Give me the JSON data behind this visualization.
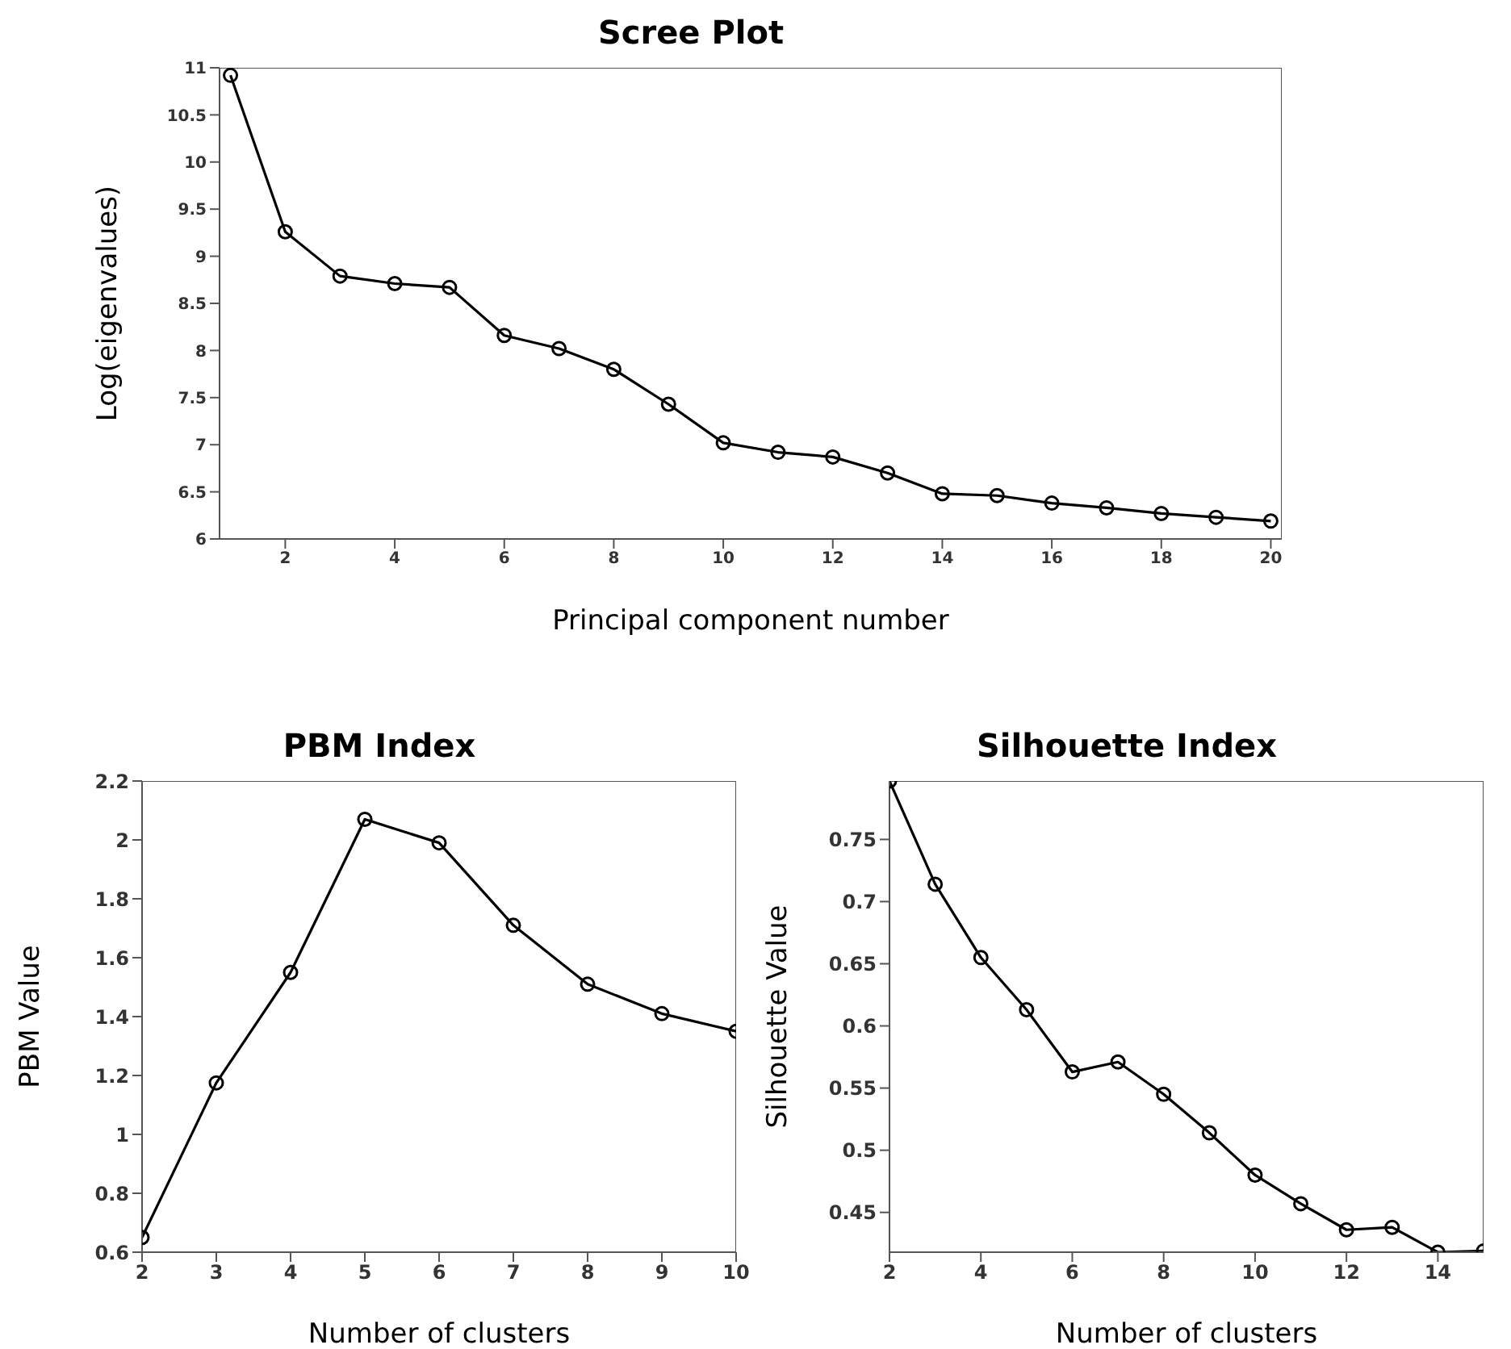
{
  "chart_data": [
    {
      "type": "line",
      "title": "Scree Plot",
      "xlabel": "Principal component number",
      "ylabel": "Log(eigenvalues)",
      "x": [
        1,
        2,
        3,
        4,
        5,
        6,
        7,
        8,
        9,
        10,
        11,
        12,
        13,
        14,
        15,
        16,
        17,
        18,
        19,
        20
      ],
      "series": [
        {
          "color": "#000000",
          "values": [
            10.92,
            9.26,
            8.79,
            8.71,
            8.67,
            8.16,
            8.02,
            7.8,
            7.43,
            7.02,
            6.92,
            6.87,
            6.7,
            6.48,
            6.46,
            6.38,
            6.33,
            6.27,
            6.23,
            6.19
          ]
        }
      ],
      "xlim": [
        0.8,
        20.2
      ],
      "xticks": [
        2,
        4,
        6,
        8,
        10,
        12,
        14,
        16,
        18,
        20
      ],
      "ylim": [
        6,
        11
      ],
      "yticks": [
        6,
        6.5,
        7,
        7.5,
        8,
        8.5,
        9,
        9.5,
        10,
        10.5,
        11
      ],
      "grid": false,
      "marker": "circle",
      "line_style": "solid"
    },
    {
      "type": "line",
      "title": "PBM Index",
      "xlabel": "Number of clusters",
      "ylabel": "PBM Value",
      "x": [
        2,
        3,
        4,
        5,
        6,
        7,
        8,
        9,
        10
      ],
      "series": [
        {
          "color": "#000000",
          "values": [
            0.65,
            1.175,
            1.55,
            2.07,
            1.99,
            1.71,
            1.51,
            1.41,
            1.35
          ]
        }
      ],
      "xlim": [
        2,
        10
      ],
      "xticks": [
        2,
        3,
        4,
        5,
        6,
        7,
        8,
        9,
        10
      ],
      "ylim": [
        0.6,
        2.2
      ],
      "yticks": [
        0.6,
        0.8,
        1,
        1.2,
        1.4,
        1.6,
        1.8,
        2,
        2.2
      ],
      "grid": false,
      "marker": "circle",
      "line_style": "solid"
    },
    {
      "type": "line",
      "title": "Silhouette Index",
      "xlabel": "Number of clusters",
      "ylabel": "Silhouette Value",
      "x": [
        2,
        3,
        4,
        5,
        6,
        7,
        8,
        9,
        10,
        11,
        12,
        13,
        14,
        15
      ],
      "series": [
        {
          "color": "#000000",
          "values": [
            0.797,
            0.714,
            0.655,
            0.613,
            0.563,
            0.571,
            0.545,
            0.514,
            0.48,
            0.457,
            0.436,
            0.438,
            0.418,
            0.419
          ]
        }
      ],
      "xlim": [
        2,
        15
      ],
      "xticks": [
        2,
        4,
        6,
        8,
        10,
        12,
        14
      ],
      "ylim": [
        0.418,
        0.797
      ],
      "yticks": [
        0.45,
        0.5,
        0.55,
        0.6,
        0.65,
        0.7,
        0.75
      ],
      "grid": false,
      "marker": "circle",
      "line_style": "solid"
    }
  ]
}
